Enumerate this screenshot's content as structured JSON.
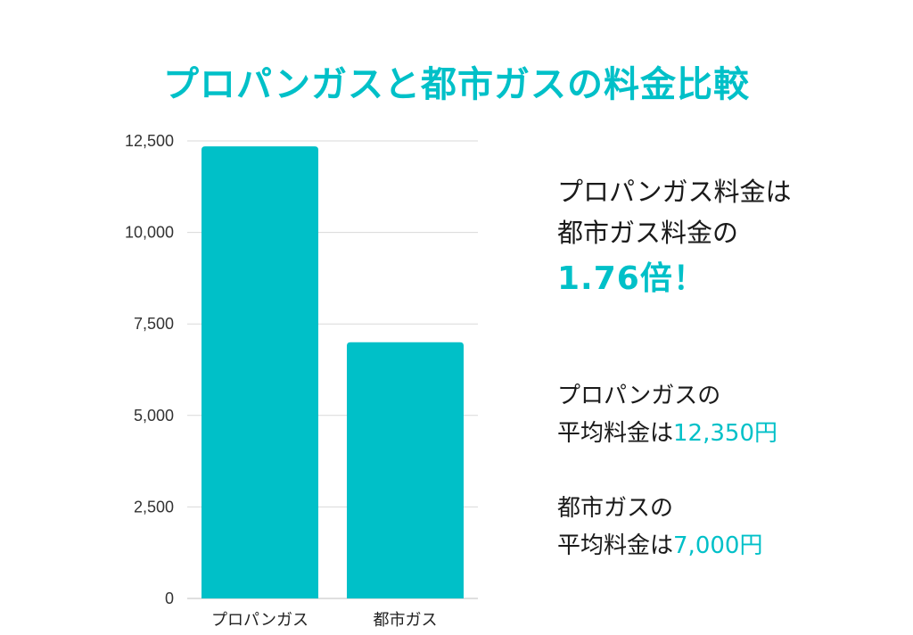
{
  "title": "プロパンガスと都市ガスの料金比較",
  "colors": {
    "accent": "#00c0c8",
    "grid": "#d9d9d9",
    "text": "#222222"
  },
  "chart_data": {
    "type": "bar",
    "title": "",
    "xlabel": "",
    "ylabel": "",
    "categories": [
      "プロパンガス",
      "都市ガス"
    ],
    "values": [
      12350,
      7000
    ],
    "ylim": [
      0,
      12500
    ],
    "yticks": [
      0,
      2500,
      5000,
      7500,
      10000,
      12500
    ],
    "ytick_labels": [
      "0",
      "2,500",
      "5,000",
      "7,500",
      "10,000",
      "12,500"
    ],
    "grid": true,
    "bar_color": "#00c0c8"
  },
  "summary": {
    "line1": "プロパンガス料金は",
    "line2": "都市ガス料金の",
    "ratio": "1.76倍！"
  },
  "details": {
    "propane": {
      "line1": "プロパンガスの",
      "prefix": "平均料金は",
      "value": "12,350円"
    },
    "city": {
      "line1": "都市ガスの",
      "prefix": "平均料金は",
      "value": "7,000円"
    }
  }
}
